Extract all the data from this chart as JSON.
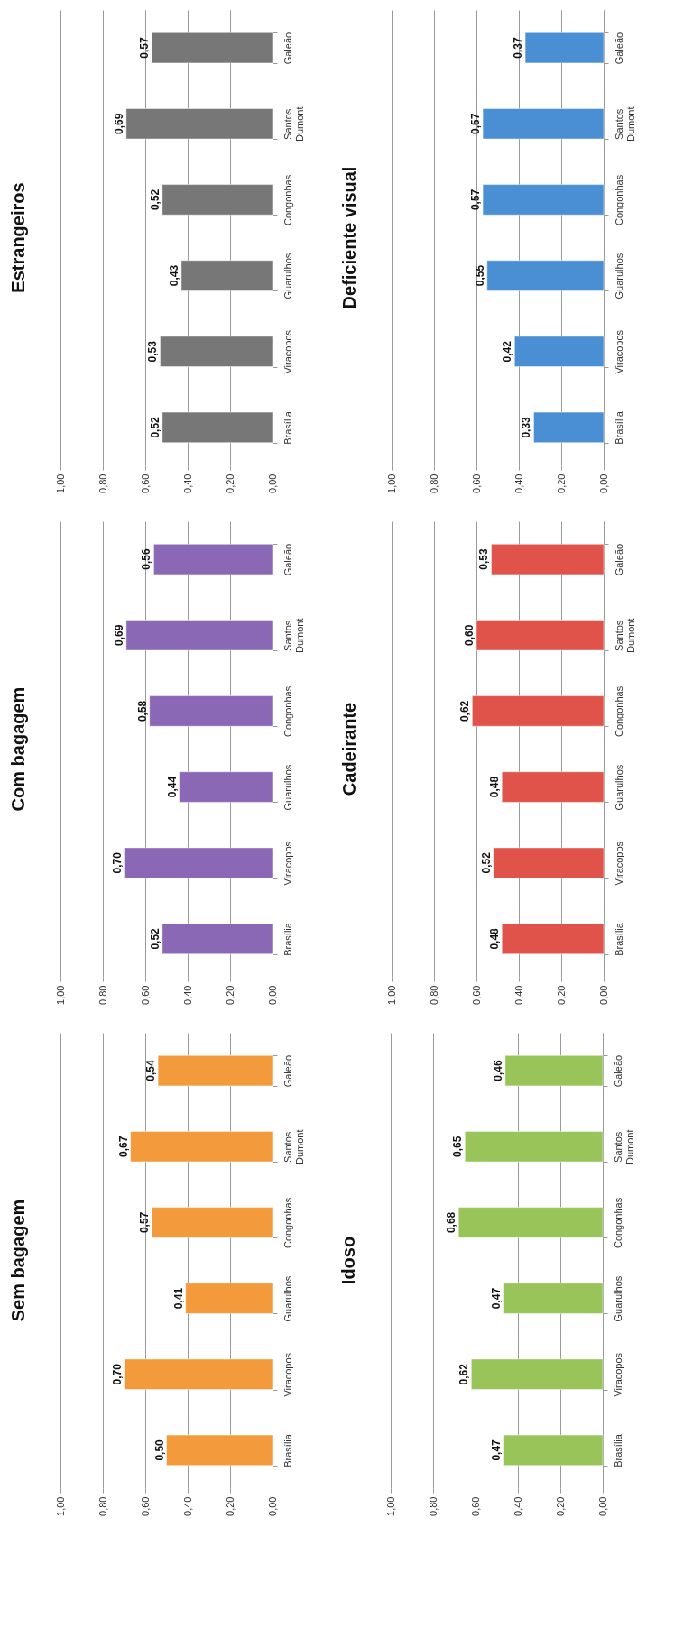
{
  "chart_data": [
    {
      "type": "bar",
      "orientation": "horizontal",
      "title": "Sem bagagem",
      "categories": [
        "Galeão",
        "Santos Dumont",
        "Congonhas",
        "Guarulhos",
        "Viracopos",
        "Brasília"
      ],
      "values": [
        0.54,
        0.67,
        0.57,
        0.41,
        0.7,
        0.5
      ],
      "value_labels": [
        "0,54",
        "0,67",
        "0,57",
        "0,41",
        "0,70",
        "0,50"
      ],
      "color": "#f39a3d",
      "xlim": [
        1,
        0
      ],
      "xticks": [
        {
          "value": 1,
          "label": "1,00"
        },
        {
          "value": 0.8,
          "label": "0,80"
        },
        {
          "value": 0.6,
          "label": "0,60"
        },
        {
          "value": 0.4,
          "label": "0,40"
        },
        {
          "value": 0.2,
          "label": "0,20"
        },
        {
          "value": 0,
          "label": "0,00"
        }
      ],
      "grid": "x"
    },
    {
      "type": "bar",
      "orientation": "horizontal",
      "title": "Com bagagem",
      "categories": [
        "Galeão",
        "Santos Dumont",
        "Congonhas",
        "Guarulhos",
        "Viracopos",
        "Brasília"
      ],
      "values": [
        0.56,
        0.69,
        0.58,
        0.44,
        0.7,
        0.52
      ],
      "value_labels": [
        "0,56",
        "0,69",
        "0,58",
        "0,44",
        "0,70",
        "0,52"
      ],
      "color": "#8a68b5",
      "xlim": [
        1,
        0
      ],
      "xticks": [
        {
          "value": 1,
          "label": "1,00"
        },
        {
          "value": 0.8,
          "label": "0,80"
        },
        {
          "value": 0.6,
          "label": "0,60"
        },
        {
          "value": 0.4,
          "label": "0,40"
        },
        {
          "value": 0.2,
          "label": "0,20"
        },
        {
          "value": 0,
          "label": "0,00"
        }
      ],
      "grid": "x"
    },
    {
      "type": "bar",
      "orientation": "horizontal",
      "title": "Estrangeiros",
      "categories": [
        "Galeão",
        "Santos Dumont",
        "Congonhas",
        "Guarulhos",
        "Viracopos",
        "Brasília"
      ],
      "values": [
        0.57,
        0.69,
        0.52,
        0.43,
        0.53,
        0.52
      ],
      "value_labels": [
        "0,57",
        "0,69",
        "0,52",
        "0,43",
        "0,53",
        "0,52"
      ],
      "color": "#777777",
      "xlim": [
        1,
        0
      ],
      "xticks": [
        {
          "value": 1,
          "label": "1,00"
        },
        {
          "value": 0.8,
          "label": "0,80"
        },
        {
          "value": 0.6,
          "label": "0,60"
        },
        {
          "value": 0.4,
          "label": "0,40"
        },
        {
          "value": 0.2,
          "label": "0,20"
        },
        {
          "value": 0,
          "label": "0,00"
        }
      ],
      "grid": "x"
    },
    {
      "type": "bar",
      "orientation": "horizontal",
      "title": "Idoso",
      "categories": [
        "Galeão",
        "Santos Dumont",
        "Congonhas",
        "Guarulhos",
        "Viracopos",
        "Brasília"
      ],
      "values": [
        0.46,
        0.65,
        0.68,
        0.47,
        0.62,
        0.47
      ],
      "value_labels": [
        "0,46",
        "0,65",
        "0,68",
        "0,47",
        "0,62",
        "0,47"
      ],
      "color": "#98c45a",
      "xlim": [
        1,
        0
      ],
      "xticks": [
        {
          "value": 1,
          "label": "1,00"
        },
        {
          "value": 0.8,
          "label": "0,80"
        },
        {
          "value": 0.6,
          "label": "0,60"
        },
        {
          "value": 0.4,
          "label": "0,40"
        },
        {
          "value": 0.2,
          "label": "0,20"
        },
        {
          "value": 0,
          "label": "0,00"
        }
      ],
      "grid": "x"
    },
    {
      "type": "bar",
      "orientation": "horizontal",
      "title": "Cadeirante",
      "categories": [
        "Galeão",
        "Santos Dumont",
        "Congonhas",
        "Guarulhos",
        "Viracopos",
        "Brasília"
      ],
      "values": [
        0.53,
        0.6,
        0.62,
        0.48,
        0.52,
        0.48
      ],
      "value_labels": [
        "0,53",
        "0,60",
        "0,62",
        "0,48",
        "0,52",
        "0,48"
      ],
      "color": "#e0534a",
      "xlim": [
        1,
        0
      ],
      "xticks": [
        {
          "value": 1,
          "label": "1,00"
        },
        {
          "value": 0.8,
          "label": "0,80"
        },
        {
          "value": 0.6,
          "label": "0,60"
        },
        {
          "value": 0.4,
          "label": "0,40"
        },
        {
          "value": 0.2,
          "label": "0,20"
        },
        {
          "value": 0,
          "label": "0,00"
        }
      ],
      "grid": "x"
    },
    {
      "type": "bar",
      "orientation": "horizontal",
      "title": "Deficiente visual",
      "categories": [
        "Galeão",
        "Santos Dumont",
        "Congonhas",
        "Guarulhos",
        "Viracopos",
        "Brasília"
      ],
      "values": [
        0.37,
        0.57,
        0.57,
        0.55,
        0.42,
        0.33
      ],
      "value_labels": [
        "0,37",
        "0,57",
        "0,57",
        "0,55",
        "0,42",
        "0,33"
      ],
      "color": "#4a8fd4",
      "xlim": [
        1,
        0
      ],
      "xticks": [
        {
          "value": 1,
          "label": "1,00"
        },
        {
          "value": 0.8,
          "label": "0,80"
        },
        {
          "value": 0.6,
          "label": "0,60"
        },
        {
          "value": 0.4,
          "label": "0,40"
        },
        {
          "value": 0.2,
          "label": "0,20"
        },
        {
          "value": 0,
          "label": "0,00"
        }
      ],
      "grid": "x"
    }
  ]
}
